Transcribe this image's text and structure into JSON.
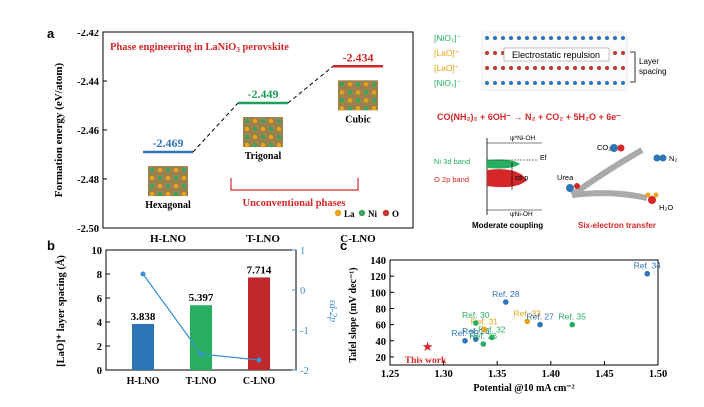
{
  "panel_a": {
    "letter": "a",
    "title": "Phase engineering in LaNiO",
    "title_sub": "3",
    "title_tail": " perovskite",
    "ylabel": "Formation energy (eV/atom)",
    "yticks": [
      "-2.42",
      "-2.44",
      "-2.46",
      "-2.48",
      "-2.50"
    ],
    "categories": [
      "H-LNO",
      "T-LNO",
      "C-LNO"
    ],
    "phases": [
      "Hexagonal",
      "Trigonal",
      "Cubic"
    ],
    "values": [
      "-2.469",
      "-2.449",
      "-2.434"
    ],
    "unconventional": "Unconventional phases",
    "legend": [
      "La",
      "Ni",
      "O"
    ],
    "colors": {
      "hex": "#2e75b6",
      "trig": "#1e9e5a",
      "cubic": "#d62728",
      "title": "#d62728",
      "la": "#e8a317",
      "ni": "#3aa55d",
      "o": "#c0392b"
    }
  },
  "panel_a_right": {
    "layers": [
      "[NiO₂]⁻",
      "[LaO]⁺",
      "[LaO]⁺",
      "[NiO₂]⁻"
    ],
    "repulsion": "Electrostatic repulsion",
    "layer_spacing": "Layer spacing",
    "reaction": "CO(NH₂)₂ + 6OH⁻ → N₂ + CO₂ + 5H₂O + 6e⁻",
    "ni3d": "Ni 3d band",
    "o2p": "O 2p band",
    "eps": "εd-p",
    "moderate": "Moderate coupling",
    "six_electron": "Six-electron transfer",
    "urea": "Urea",
    "co2": "CO₂",
    "n2": "N₂",
    "h2o": "H₂O",
    "psi_top": "ψ*Ni-OH",
    "psi_bot": "ψNi-OH",
    "ef": "Ef"
  },
  "panel_b": {
    "letter": "b",
    "ylabel": "[LaO]⁺ layer spacing (Å)",
    "y2label": "εd-2p",
    "chart_data": {
      "type": "bar",
      "categories": [
        "H-LNO",
        "T-LNO",
        "C-LNO"
      ],
      "values": [
        3.838,
        5.397,
        7.714
      ],
      "labels": [
        "3.838",
        "5.397",
        "7.714"
      ],
      "ylim": [
        0,
        10
      ],
      "yticks": [
        "0",
        "2",
        "4",
        "6",
        "8",
        "10"
      ],
      "colors": [
        "#2e75b6",
        "#27ae60",
        "#c0282d"
      ],
      "line": {
        "values": [
          0.4,
          -1.6,
          -1.75
        ],
        "ylim": [
          -2,
          1
        ],
        "yticks": [
          "1",
          "0",
          "-1",
          "-2"
        ],
        "color": "#3a8fd0"
      }
    }
  },
  "panel_c": {
    "letter": "c",
    "ylabel": "Tafel slope (mV dec⁻¹)",
    "xlabel": "Potential @10 mA cm⁻²",
    "chart_data": {
      "type": "scatter",
      "xlim": [
        1.25,
        1.5
      ],
      "ylim": [
        10,
        140
      ],
      "xticks": [
        "1.25",
        "1.30",
        "1.35",
        "1.40",
        "1.45",
        "1.50"
      ],
      "yticks": [
        "20",
        "40",
        "60",
        "80",
        "100",
        "120",
        "140"
      ],
      "points": [
        {
          "x": 1.285,
          "y": 32,
          "label": "This work",
          "color": "#d62728"
        },
        {
          "x": 1.32,
          "y": 40,
          "label": "Ref. 29",
          "color": "#2e75b6"
        },
        {
          "x": 1.33,
          "y": 42,
          "label": "Ref. 26",
          "color": "#2e75b6"
        },
        {
          "x": 1.337,
          "y": 36,
          "label": "Ref. 36",
          "color": "#27ae60"
        },
        {
          "x": 1.345,
          "y": 44,
          "label": "Ref. 32",
          "color": "#27ae60"
        },
        {
          "x": 1.338,
          "y": 54,
          "label": "Ref. 31",
          "color": "#e8a317"
        },
        {
          "x": 1.33,
          "y": 62,
          "label": "Ref. 30",
          "color": "#27ae60"
        },
        {
          "x": 1.358,
          "y": 88,
          "label": "Ref. 28",
          "color": "#2e75b6"
        },
        {
          "x": 1.378,
          "y": 64,
          "label": "Ref. 33",
          "color": "#e8a317"
        },
        {
          "x": 1.39,
          "y": 60,
          "label": "Ref. 27",
          "color": "#2e75b6"
        },
        {
          "x": 1.42,
          "y": 60,
          "label": "Ref. 35",
          "color": "#27ae60"
        },
        {
          "x": 1.49,
          "y": 123,
          "label": "Ref. 34",
          "color": "#2e75b6"
        }
      ]
    }
  }
}
